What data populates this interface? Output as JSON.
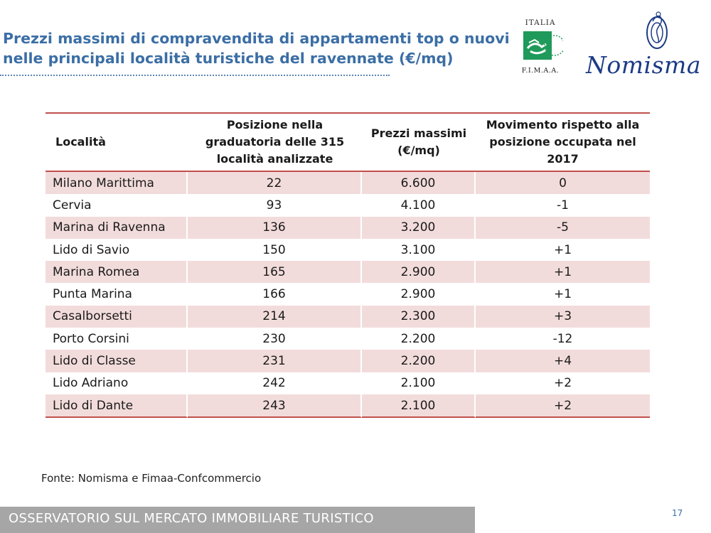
{
  "title": "Prezzi massimi di compravendita di appartamenti top o nuovi nelle principali località turistiche del ravennate (€/mq)",
  "logos": {
    "fimaa_top": "ITALIA",
    "fimaa_bottom": "F.I.M.A.A.",
    "nomisma": "Nomisma"
  },
  "table": {
    "headers": [
      "Località",
      "Posizione nella graduatoria delle 315 località analizzate",
      "Prezzi massimi (€/mq)",
      "Movimento rispetto alla posizione occupata nel 2017"
    ],
    "rows": [
      [
        "Milano Marittima",
        "22",
        "6.600",
        "0"
      ],
      [
        "Cervia",
        "93",
        "4.100",
        "-1"
      ],
      [
        "Marina di Ravenna",
        "136",
        "3.200",
        "-5"
      ],
      [
        "Lido di Savio",
        "150",
        "3.100",
        "+1"
      ],
      [
        "Marina Romea",
        "165",
        "2.900",
        "+1"
      ],
      [
        "Punta Marina",
        "166",
        "2.900",
        "+1"
      ],
      [
        "Casalborsetti",
        "214",
        "2.300",
        "+3"
      ],
      [
        "Porto Corsini",
        "230",
        "2.200",
        "-12"
      ],
      [
        "Lido di Classe",
        "231",
        "2.200",
        "+4"
      ],
      [
        "Lido Adriano",
        "242",
        "2.100",
        "+2"
      ],
      [
        "Lido di Dante",
        "243",
        "2.100",
        "+2"
      ]
    ]
  },
  "source": "Fonte: Nomisma e Fimaa-Confcommercio",
  "footer": "OSSERVATORIO SUL MERCATO IMMOBILIARE TURISTICO",
  "page_number": "17",
  "colors": {
    "title": "#3b6ea5",
    "table_rule": "#c0504d",
    "row_band": "#f2dcdb",
    "footer_band": "#a6a6a6",
    "logo_green": "#1f9a5a",
    "logo_blue": "#1c3b86"
  }
}
